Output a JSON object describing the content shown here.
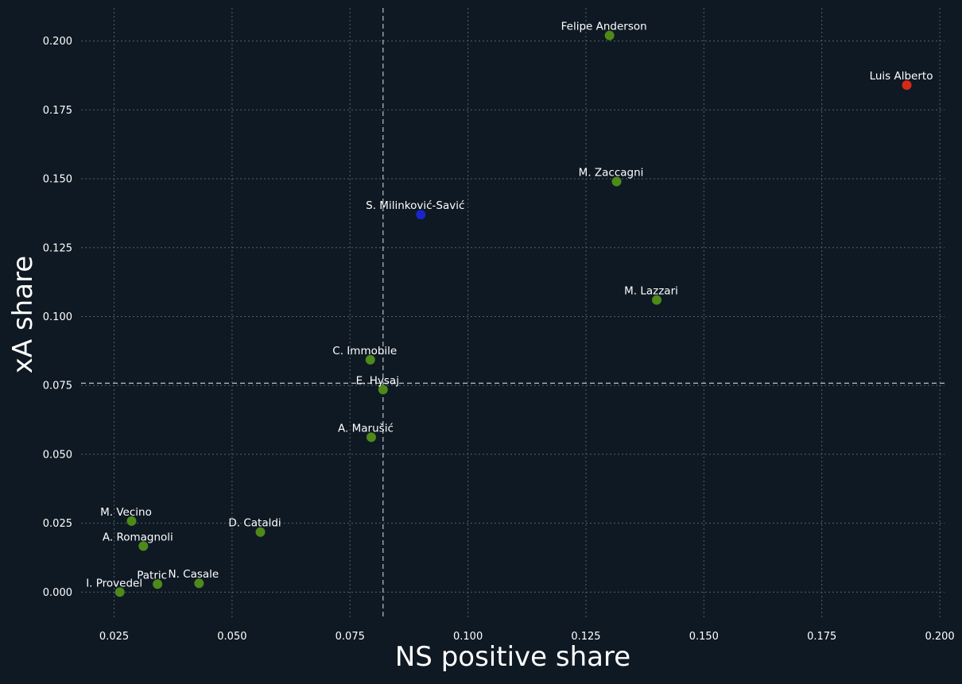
{
  "chart_data": {
    "type": "scatter",
    "title": "",
    "xlabel": "NS positive share",
    "ylabel": "xA share",
    "xlim": [
      0.018,
      0.201
    ],
    "ylim": [
      -0.01,
      0.212
    ],
    "x_ticks": [
      "0.025",
      "0.050",
      "0.075",
      "0.100",
      "0.125",
      "0.150",
      "0.175",
      "0.200"
    ],
    "y_ticks": [
      "0.000",
      "0.025",
      "0.050",
      "0.075",
      "0.100",
      "0.125",
      "0.150",
      "0.175",
      "0.200"
    ],
    "grid": true,
    "reference_lines": {
      "x": 0.082,
      "y": 0.0758
    },
    "colors": {
      "background": "#0f1923",
      "default_point": "#4d8a1a",
      "highlight_red": "#d42a18",
      "highlight_blue": "#1a24c9",
      "grid": "#52606b",
      "reference": "#b9bec4"
    },
    "points": [
      {
        "label": "Felipe Anderson",
        "x": 0.13,
        "y": 0.202,
        "color": "#4d8a1a"
      },
      {
        "label": "Luis Alberto",
        "x": 0.193,
        "y": 0.184,
        "color": "#d42a18"
      },
      {
        "label": "M. Zaccagni",
        "x": 0.1315,
        "y": 0.149,
        "color": "#4d8a1a"
      },
      {
        "label": "S. Milinković-Savić",
        "x": 0.09,
        "y": 0.137,
        "color": "#1a24c9"
      },
      {
        "label": "M. Lazzari",
        "x": 0.14,
        "y": 0.106,
        "color": "#4d8a1a"
      },
      {
        "label": "C. Immobile",
        "x": 0.0793,
        "y": 0.0843,
        "color": "#4d8a1a"
      },
      {
        "label": "E. Hysaj",
        "x": 0.082,
        "y": 0.0735,
        "color": "#4d8a1a"
      },
      {
        "label": "A. Marušić",
        "x": 0.0795,
        "y": 0.0562,
        "color": "#4d8a1a"
      },
      {
        "label": "M. Vecino",
        "x": 0.0287,
        "y": 0.0258,
        "color": "#4d8a1a"
      },
      {
        "label": "D. Cataldi",
        "x": 0.056,
        "y": 0.0218,
        "color": "#4d8a1a"
      },
      {
        "label": "A. Romagnoli",
        "x": 0.0312,
        "y": 0.0167,
        "color": "#4d8a1a"
      },
      {
        "label": "Patric",
        "x": 0.0342,
        "y": 0.0029,
        "color": "#4d8a1a"
      },
      {
        "label": "N. Casale",
        "x": 0.043,
        "y": 0.0032,
        "color": "#4d8a1a"
      },
      {
        "label": "I. Provedel",
        "x": 0.0262,
        "y": 0.0,
        "color": "#4d8a1a"
      }
    ]
  }
}
